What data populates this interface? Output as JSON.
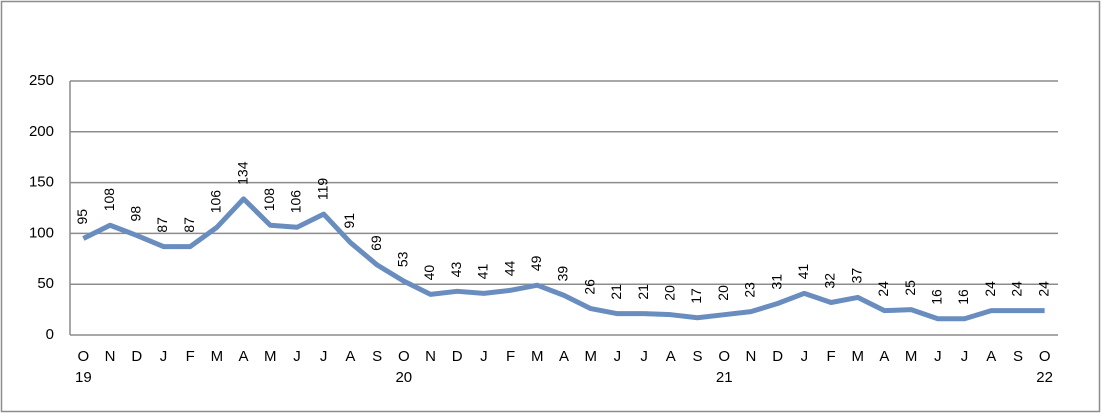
{
  "chart_data": {
    "type": "line",
    "categories": [
      "O",
      "N",
      "D",
      "J",
      "F",
      "M",
      "A",
      "M",
      "J",
      "J",
      "A",
      "S",
      "O",
      "N",
      "D",
      "J",
      "F",
      "M",
      "A",
      "M",
      "J",
      "J",
      "A",
      "S",
      "O",
      "N",
      "D",
      "J",
      "F",
      "M",
      "A",
      "M",
      "J",
      "J",
      "A",
      "S",
      "O"
    ],
    "category_years": [
      "19",
      null,
      null,
      null,
      null,
      null,
      null,
      null,
      null,
      null,
      null,
      null,
      "20",
      null,
      null,
      null,
      null,
      null,
      null,
      null,
      null,
      null,
      null,
      null,
      "21",
      null,
      null,
      null,
      null,
      null,
      null,
      null,
      null,
      null,
      null,
      null,
      "22"
    ],
    "values": [
      95,
      108,
      98,
      87,
      87,
      106,
      134,
      108,
      106,
      119,
      91,
      69,
      53,
      40,
      43,
      41,
      44,
      49,
      39,
      26,
      21,
      21,
      20,
      17,
      20,
      23,
      31,
      41,
      32,
      37,
      24,
      25,
      16,
      16,
      24,
      24,
      24
    ],
    "color": "#6a8dbf",
    "ylim": [
      0,
      250
    ],
    "yticks": [
      0,
      50,
      100,
      150,
      200,
      250
    ],
    "grid": true
  }
}
